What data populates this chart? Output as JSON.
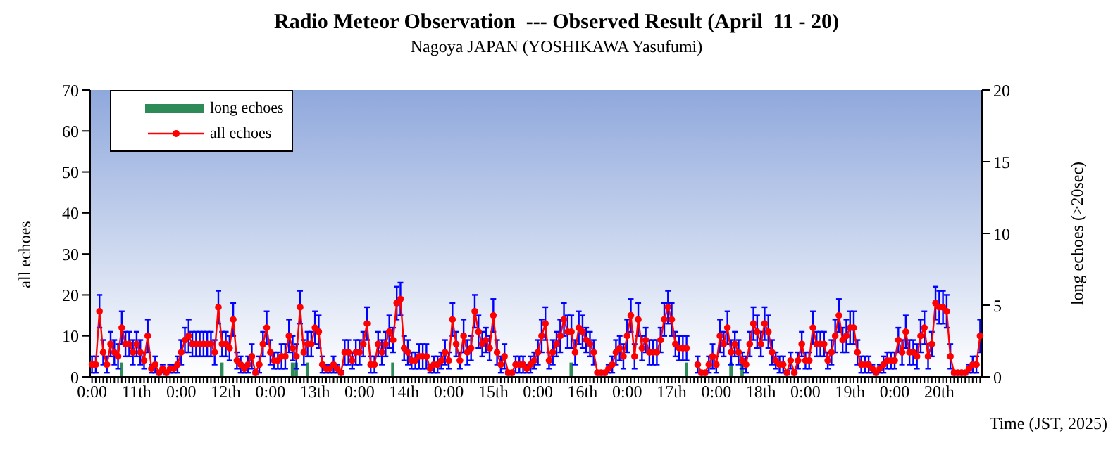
{
  "chart_data": {
    "type": "line",
    "title": "Radio Meteor Observation  --- Observed Result (April  11 - 20)",
    "subtitle": "Nagoya JAPAN (YOSHIKAWA Yasufumi)",
    "xlabel": "Time (JST, 2025)",
    "ylabel": "all echoes",
    "y2label": "long echoes (>20sec)",
    "categories": [
      "0:00",
      null,
      null,
      null,
      null,
      null,
      null,
      null,
      null,
      null,
      null,
      null,
      "11th",
      null,
      null,
      null,
      null,
      null,
      null,
      null,
      null,
      null,
      null,
      null,
      "0:00",
      null,
      null,
      null,
      null,
      null,
      null,
      null,
      null,
      null,
      null,
      null,
      "12th",
      null,
      null,
      null,
      null,
      null,
      null,
      null,
      null,
      null,
      null,
      null,
      "0:00",
      null,
      null,
      null,
      null,
      null,
      null,
      null,
      null,
      null,
      null,
      null,
      "13th",
      null,
      null,
      null,
      null,
      null,
      null,
      null,
      null,
      null,
      null,
      null,
      "0:00",
      null,
      null,
      null,
      null,
      null,
      null,
      null,
      null,
      null,
      null,
      null,
      "14th",
      null,
      null,
      null,
      null,
      null,
      null,
      null,
      null,
      null,
      null,
      null,
      "0:00",
      null,
      null,
      null,
      null,
      null,
      null,
      null,
      null,
      null,
      null,
      null,
      "15th",
      null,
      null,
      null,
      null,
      null,
      null,
      null,
      null,
      null,
      null,
      null,
      "0:00",
      null,
      null,
      null,
      null,
      null,
      null,
      null,
      null,
      null,
      null,
      null,
      "16th",
      null,
      null,
      null,
      null,
      null,
      null,
      null,
      null,
      null,
      null,
      null,
      "0:00",
      null,
      null,
      null,
      null,
      null,
      null,
      null,
      null,
      null,
      null,
      null,
      "17th",
      null,
      null,
      null,
      null,
      null,
      null,
      null,
      null,
      null,
      null,
      null,
      "0:00",
      null,
      null,
      null,
      null,
      null,
      null,
      null,
      null,
      null,
      null,
      null,
      "18th",
      null,
      null,
      null,
      null,
      null,
      null,
      null,
      null,
      null,
      null,
      null,
      "0:00",
      null,
      null,
      null,
      null,
      null,
      null,
      null,
      null,
      null,
      null,
      null,
      "19th",
      null,
      null,
      null,
      null,
      null,
      null,
      null,
      null,
      null,
      null,
      null,
      "0:00",
      null,
      null,
      null,
      null,
      null,
      null,
      null,
      null,
      null,
      null,
      null,
      "20th",
      null,
      null,
      null,
      null,
      null,
      null,
      null,
      null,
      null,
      null,
      null
    ],
    "series": [
      {
        "name": "long echoes",
        "type": "bar",
        "axis": "y2",
        "color": "#2e8b57",
        "values": [
          null,
          null,
          null,
          null,
          null,
          null,
          null,
          null,
          1,
          null,
          null,
          null,
          null,
          null,
          null,
          null,
          null,
          null,
          null,
          null,
          null,
          null,
          null,
          null,
          null,
          null,
          null,
          null,
          null,
          null,
          null,
          null,
          null,
          null,
          null,
          1,
          null,
          null,
          null,
          null,
          null,
          null,
          null,
          null,
          null,
          null,
          null,
          null,
          null,
          null,
          null,
          null,
          null,
          null,
          1,
          1,
          null,
          null,
          1,
          null,
          null,
          null,
          null,
          null,
          null,
          null,
          null,
          null,
          null,
          null,
          null,
          null,
          null,
          null,
          null,
          null,
          null,
          null,
          null,
          null,
          null,
          1,
          null,
          null,
          null,
          null,
          null,
          null,
          null,
          null,
          null,
          null,
          null,
          null,
          null,
          null,
          null,
          null,
          null,
          null,
          null,
          null,
          null,
          null,
          null,
          null,
          null,
          null,
          null,
          null,
          null,
          null,
          null,
          null,
          null,
          null,
          null,
          null,
          null,
          null,
          null,
          null,
          null,
          null,
          null,
          null,
          null,
          null,
          null,
          1,
          null,
          null,
          null,
          null,
          null,
          null,
          null,
          null,
          null,
          null,
          null,
          null,
          null,
          null,
          null,
          null,
          null,
          null,
          null,
          null,
          null,
          null,
          null,
          null,
          null,
          null,
          null,
          null,
          null,
          null,
          1,
          null,
          null,
          null,
          null,
          null,
          null,
          null,
          null,
          null,
          null,
          null,
          1,
          null,
          null,
          1,
          null,
          null,
          null,
          null,
          null,
          null,
          null,
          null,
          null,
          null,
          null,
          null,
          null,
          null,
          null,
          null,
          null,
          null,
          null,
          null,
          null,
          null,
          null,
          null,
          null,
          null,
          null,
          null,
          null,
          null,
          null,
          null,
          null,
          null,
          null,
          null,
          null,
          null,
          null,
          null,
          null,
          null,
          null,
          null,
          null,
          null,
          null,
          null,
          null,
          null,
          null,
          null,
          null,
          null,
          null,
          null,
          null,
          null,
          null,
          null,
          null,
          null,
          null,
          null
        ]
      },
      {
        "name": "all echoes",
        "color": "#ff0000",
        "values": [
          3,
          3,
          16,
          6,
          3,
          8,
          6,
          5,
          12,
          8,
          8,
          6,
          8,
          6,
          4,
          10,
          2,
          3,
          1,
          2,
          1,
          2,
          2,
          3,
          6,
          9,
          10,
          8,
          8,
          8,
          8,
          8,
          8,
          6,
          17,
          8,
          8,
          7,
          14,
          4,
          3,
          2,
          3,
          5,
          1,
          3,
          8,
          12,
          6,
          4,
          4,
          5,
          5,
          10,
          7,
          5,
          17,
          6,
          8,
          8,
          12,
          11,
          3,
          2,
          2,
          3,
          2,
          1,
          6,
          6,
          4,
          6,
          6,
          8,
          13,
          3,
          3,
          8,
          6,
          8,
          11,
          9,
          18,
          19,
          7,
          6,
          4,
          4,
          5,
          5,
          5,
          2,
          3,
          3,
          4,
          6,
          4,
          14,
          8,
          4,
          10,
          6,
          7,
          16,
          11,
          8,
          9,
          7,
          15,
          6,
          3,
          5,
          1,
          1,
          3,
          3,
          3,
          2,
          3,
          4,
          6,
          10,
          13,
          4,
          6,
          8,
          10,
          14,
          11,
          11,
          6,
          12,
          11,
          9,
          8,
          6,
          1,
          1,
          1,
          2,
          3,
          6,
          7,
          5,
          10,
          15,
          5,
          14,
          7,
          9,
          6,
          6,
          6,
          9,
          14,
          17,
          14,
          8,
          7,
          7,
          7,
          null,
          null,
          3,
          1,
          1,
          3,
          5,
          3,
          10,
          8,
          12,
          6,
          8,
          6,
          4,
          3,
          8,
          13,
          11,
          8,
          13,
          11,
          6,
          4,
          3,
          3,
          1,
          4,
          1,
          4,
          8,
          4,
          4,
          12,
          8,
          8,
          8,
          4,
          6,
          10,
          15,
          9,
          10,
          12,
          12,
          6,
          3,
          3,
          3,
          2,
          1,
          2,
          3,
          4,
          4,
          4,
          9,
          6,
          11,
          6,
          6,
          5,
          10,
          12,
          5,
          8,
          18,
          17,
          17,
          16,
          5,
          1,
          1,
          1,
          1,
          2,
          3,
          3,
          10
        ],
        "errors": [
          2,
          2,
          4,
          3,
          2,
          3,
          3,
          3,
          4,
          3,
          3,
          3,
          3,
          3,
          2,
          4,
          1,
          2,
          0.5,
          1,
          0.5,
          1,
          1,
          2,
          3,
          3,
          4,
          3,
          3,
          3,
          3,
          3,
          3,
          3,
          4,
          3,
          3,
          3,
          4,
          2,
          2,
          1,
          2,
          3,
          0.5,
          2,
          3,
          4,
          3,
          2,
          2,
          3,
          3,
          4,
          3,
          3,
          4,
          3,
          3,
          3,
          4,
          4,
          2,
          1,
          1,
          2,
          1,
          0.5,
          3,
          3,
          2,
          3,
          3,
          3,
          4,
          2,
          2,
          3,
          3,
          3,
          4,
          3,
          4,
          4,
          3,
          3,
          2,
          2,
          3,
          3,
          3,
          1,
          2,
          2,
          2,
          3,
          2,
          4,
          3,
          2,
          4,
          3,
          3,
          4,
          4,
          3,
          3,
          3,
          4,
          3,
          2,
          3,
          0.5,
          0.5,
          2,
          2,
          2,
          1,
          2,
          2,
          3,
          4,
          4,
          2,
          3,
          3,
          4,
          4,
          4,
          4,
          3,
          4,
          4,
          3,
          3,
          3,
          0.5,
          0.5,
          0.5,
          1,
          2,
          3,
          3,
          3,
          4,
          4,
          3,
          4,
          3,
          3,
          3,
          3,
          3,
          3,
          4,
          4,
          4,
          3,
          3,
          3,
          3,
          null,
          null,
          2,
          0.5,
          0.5,
          2,
          3,
          2,
          4,
          3,
          4,
          3,
          3,
          3,
          2,
          2,
          3,
          4,
          4,
          3,
          4,
          4,
          3,
          2,
          2,
          2,
          0.5,
          2,
          0.5,
          2,
          3,
          2,
          2,
          4,
          3,
          3,
          3,
          2,
          3,
          4,
          4,
          3,
          4,
          4,
          4,
          3,
          2,
          2,
          2,
          1,
          0.5,
          1,
          2,
          2,
          2,
          2,
          3,
          3,
          4,
          3,
          3,
          3,
          4,
          4,
          3,
          3,
          4,
          4,
          4,
          4,
          3,
          0.5,
          0.5,
          0.5,
          0.5,
          1,
          2,
          2,
          4
        ]
      }
    ],
    "ylim": [
      0,
      70
    ],
    "yticks": [
      0,
      10,
      20,
      30,
      40,
      50,
      60,
      70
    ],
    "y2lim": [
      0,
      20
    ],
    "y2ticks": [
      0,
      5,
      10,
      15,
      20
    ],
    "legend": "top left",
    "marker": "circle",
    "line_style": "solid"
  }
}
